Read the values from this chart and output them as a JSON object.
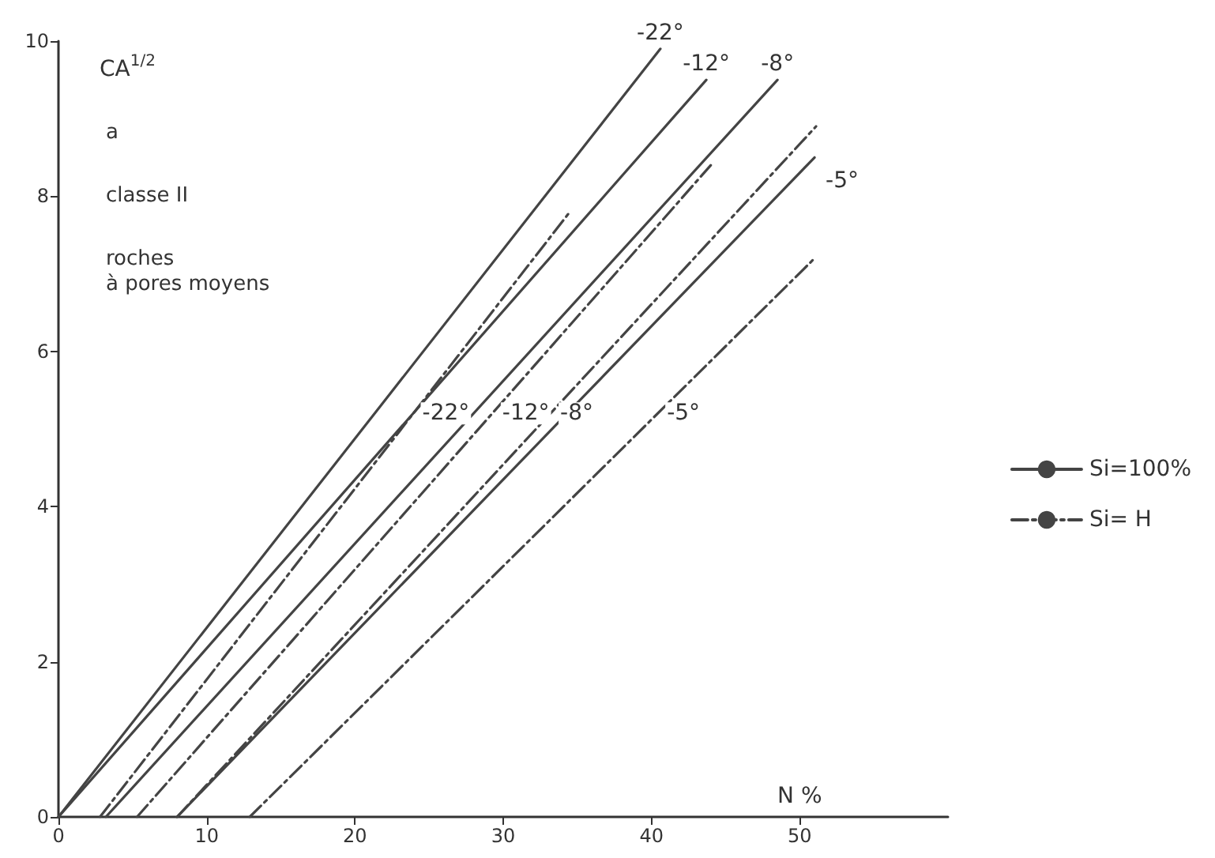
{
  "chart_data": {
    "type": "line",
    "ylabel": "CA$^{1/2}$",
    "xlabel": "N %",
    "annotations": [
      "a",
      "classe II",
      "roches\nà pores moyens",
      {
        "text": "-22°",
        "x": 40.6,
        "y": 9.9
      },
      {
        "text": "-12°",
        "x": 43.7,
        "y": 9.5
      },
      {
        "text": "-8°",
        "x": 48.5,
        "y": 9.5
      },
      {
        "text": "-5°",
        "x": 51,
        "y": 8.5
      },
      {
        "text": "-22°",
        "x": 23.9,
        "y": 5.2
      },
      {
        "text": "-12°",
        "x": 29.3,
        "y": 5.2
      },
      {
        "text": "-8°",
        "x": 33.2,
        "y": 5.2
      },
      {
        "text": "-5°",
        "x": 40.4,
        "y": 5.2
      }
    ],
    "series": [
      {
        "name": "Si=100%",
        "color": "#444444",
        "line_style": "solid",
        "x": [
          0,
          40.6
        ],
        "values": [
          0,
          9.9
        ]
      },
      {
        "color": "#444444",
        "line_style": "solid",
        "x": [
          0,
          43.7
        ],
        "values": [
          0,
          9.5
        ]
      },
      {
        "color": "#444444",
        "line_style": "solid",
        "x": [
          3.2,
          48.5
        ],
        "values": [
          0,
          9.5
        ]
      },
      {
        "color": "#444444",
        "line_style": "solid",
        "x": [
          8,
          51
        ],
        "values": [
          0,
          8.5
        ]
      },
      {
        "name": "Si= H",
        "color": "#444444",
        "line_style": "dashdot",
        "x": [
          2.8,
          34.5
        ],
        "values": [
          0,
          7.8
        ]
      },
      {
        "color": "#444444",
        "line_style": "dashdot",
        "x": [
          5.3,
          44
        ],
        "values": [
          0,
          8.4
        ]
      },
      {
        "color": "#444444",
        "line_style": "dashdot",
        "x": [
          8,
          51.1
        ],
        "values": [
          0,
          8.9
        ]
      },
      {
        "color": "#444444",
        "line_style": "dashdot",
        "x": [
          12.9,
          51
        ],
        "values": [
          0,
          7.2
        ]
      }
    ],
    "xlim": [
      0,
      60
    ],
    "xticks": [
      0,
      10,
      20,
      30,
      40,
      50
    ],
    "ylim": [
      0,
      10
    ],
    "yticks": [
      0,
      2,
      4,
      6,
      8,
      10
    ],
    "grid": false,
    "legend": "right",
    "marker": "none"
  }
}
